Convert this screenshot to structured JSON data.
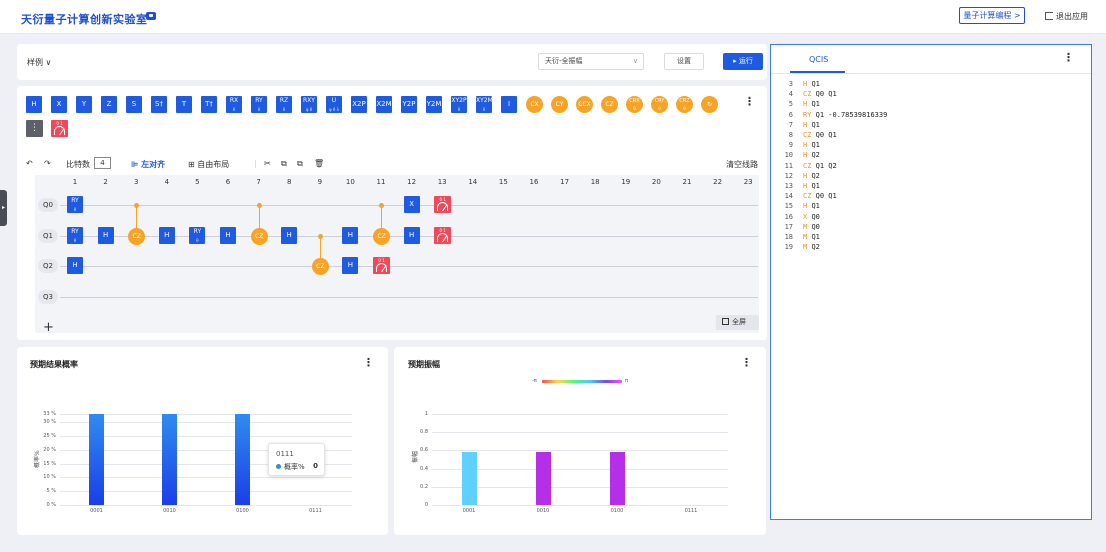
{
  "app": {
    "title": "天衍量子计算创新实验室",
    "programming_button": "量子计算编程 >",
    "exit_label": "退出应用"
  },
  "toolbar": {
    "example_label": "样例 ∨",
    "backend_select": "天衍-全振幅",
    "settings_label": "设置",
    "run_label": "▸ 运行"
  },
  "gate_palette": [
    {
      "label": "H",
      "sub": ""
    },
    {
      "label": "X",
      "sub": ""
    },
    {
      "label": "Y",
      "sub": ""
    },
    {
      "label": "Z",
      "sub": ""
    },
    {
      "label": "S",
      "sub": ""
    },
    {
      "label": "S†",
      "sub": ""
    },
    {
      "label": "T",
      "sub": ""
    },
    {
      "label": "T†",
      "sub": ""
    },
    {
      "label": "RX",
      "sub": "θ"
    },
    {
      "label": "RY",
      "sub": "θ"
    },
    {
      "label": "RZ",
      "sub": "θ"
    },
    {
      "label": "RXY",
      "sub": "φ θ"
    },
    {
      "label": "U",
      "sub": "φ θ λ"
    },
    {
      "label": "X2P",
      "sub": ""
    },
    {
      "label": "X2M",
      "sub": ""
    },
    {
      "label": "Y2P",
      "sub": ""
    },
    {
      "label": "Y2M",
      "sub": ""
    },
    {
      "label": "XY2P",
      "sub": "θ"
    },
    {
      "label": "XY2M",
      "sub": "θ"
    },
    {
      "label": "I",
      "sub": ""
    }
  ],
  "orange_palette": [
    {
      "label": "CX",
      "sub": ""
    },
    {
      "label": "CY",
      "sub": ""
    },
    {
      "label": "CCX",
      "sub": ""
    },
    {
      "label": "CZ",
      "sub": ""
    },
    {
      "label": "CRX",
      "sub": "θ"
    },
    {
      "label": "CRY",
      "sub": "θ"
    },
    {
      "label": "CRZ",
      "sub": "θ"
    },
    {
      "label": "↻",
      "sub": ""
    }
  ],
  "editor": {
    "bits_label": "比特数",
    "bits_value": "4",
    "left_align": "左对齐",
    "free_layout": "自由布局",
    "clear_lines": "清空线路",
    "fullscreen": "全屏",
    "add_qubit": "+",
    "columns": [
      "1",
      "2",
      "3",
      "4",
      "5",
      "6",
      "7",
      "8",
      "9",
      "10",
      "11",
      "12",
      "13",
      "14",
      "15",
      "16",
      "17",
      "18",
      "19",
      "20",
      "21",
      "22",
      "23"
    ],
    "qubits": [
      "Q0",
      "Q1",
      "Q2",
      "Q3"
    ],
    "measure_label": "0 1"
  },
  "circuit_gates": [
    {
      "col": 1,
      "q": 0,
      "label": "RY",
      "sub": "θ"
    },
    {
      "col": 1,
      "q": 1,
      "label": "RY",
      "sub": "θ"
    },
    {
      "col": 1,
      "q": 2,
      "label": "H",
      "sub": ""
    },
    {
      "col": 2,
      "q": 1,
      "label": "H",
      "sub": ""
    },
    {
      "col": 4,
      "q": 1,
      "label": "H",
      "sub": ""
    },
    {
      "col": 5,
      "q": 1,
      "label": "RY",
      "sub": "θ"
    },
    {
      "col": 6,
      "q": 1,
      "label": "H",
      "sub": ""
    },
    {
      "col": 8,
      "q": 1,
      "label": "H",
      "sub": ""
    },
    {
      "col": 10,
      "q": 1,
      "label": "H",
      "sub": ""
    },
    {
      "col": 10,
      "q": 2,
      "label": "H",
      "sub": ""
    },
    {
      "col": 12,
      "q": 0,
      "label": "X",
      "sub": ""
    },
    {
      "col": 12,
      "q": 1,
      "label": "H",
      "sub": ""
    }
  ],
  "circuit_cz": [
    {
      "col": 3,
      "ctrl": 0,
      "target": 1,
      "label": "CZ"
    },
    {
      "col": 7,
      "ctrl": 0,
      "target": 1,
      "label": "CZ"
    },
    {
      "col": 9,
      "ctrl": 1,
      "target": 2,
      "label": "CZ"
    },
    {
      "col": 11,
      "ctrl": 0,
      "target": 1,
      "label": "CZ"
    }
  ],
  "circuit_measures": [
    {
      "col": 13,
      "q": 0
    },
    {
      "col": 13,
      "q": 1
    },
    {
      "col": 11,
      "q": 2
    }
  ],
  "prob_chart": {
    "title": "预期结果概率",
    "ylabel": "概率%",
    "tooltip": {
      "state": "0111",
      "label": "概率%",
      "value": "0"
    }
  },
  "amp_chart": {
    "title": "预期振幅",
    "ylabel": "振幅",
    "legend_min": "-π",
    "legend_max": "π"
  },
  "chart_data": [
    {
      "type": "bar",
      "title": "预期结果概率",
      "categories": [
        "0001",
        "0010",
        "0100",
        "0111"
      ],
      "values": [
        33,
        33,
        33,
        0
      ],
      "ylabel": "概率%",
      "ylim": [
        0,
        33
      ],
      "yticks": [
        "0 %",
        "5 %",
        "10 %",
        "15 %",
        "20 %",
        "25 %",
        "30 %",
        "33 %"
      ],
      "ytick_values": [
        0,
        5,
        10,
        15,
        20,
        25,
        30,
        33
      ],
      "colors": [
        "#2f8cf0",
        "#1a3ee8"
      ]
    },
    {
      "type": "bar",
      "title": "预期振幅",
      "categories": [
        "0001",
        "0010",
        "0100",
        "0111"
      ],
      "values": [
        0.577,
        0.577,
        0.577,
        0
      ],
      "ylabel": "振幅",
      "ylim": [
        0,
        1
      ],
      "yticks": [
        "0",
        "0.2",
        "0.4",
        "0.6",
        "0.8",
        "1"
      ],
      "ytick_values": [
        0,
        0.2,
        0.4,
        0.6,
        0.8,
        1
      ],
      "bar_colors": [
        "#5fd0ff",
        "#b52ee8",
        "#b52ee8",
        "#b52ee8"
      ]
    }
  ],
  "qcis": {
    "tab": "QCIS",
    "lines": [
      {
        "n": "3",
        "op": "H",
        "args": "Q1"
      },
      {
        "n": "4",
        "op": "CZ",
        "args": "Q0 Q1"
      },
      {
        "n": "5",
        "op": "H",
        "args": "Q1"
      },
      {
        "n": "6",
        "op": "RY",
        "args": "Q1 -0.78539816339"
      },
      {
        "n": "7",
        "op": "H",
        "args": "Q1"
      },
      {
        "n": "8",
        "op": "CZ",
        "args": "Q0 Q1"
      },
      {
        "n": "9",
        "op": "H",
        "args": "Q1"
      },
      {
        "n": "10",
        "op": "H",
        "args": "Q2"
      },
      {
        "n": "11",
        "op": "CZ",
        "args": "Q1 Q2"
      },
      {
        "n": "12",
        "op": "H",
        "args": "Q2"
      },
      {
        "n": "13",
        "op": "H",
        "args": "Q1"
      },
      {
        "n": "14",
        "op": "CZ",
        "args": "Q0 Q1"
      },
      {
        "n": "15",
        "op": "H",
        "args": "Q1"
      },
      {
        "n": "16",
        "op": "X",
        "args": "Q0"
      },
      {
        "n": "17",
        "op": "M",
        "args": "Q0"
      },
      {
        "n": "18",
        "op": "M",
        "args": "Q1"
      },
      {
        "n": "19",
        "op": "M",
        "args": "Q2"
      }
    ]
  }
}
